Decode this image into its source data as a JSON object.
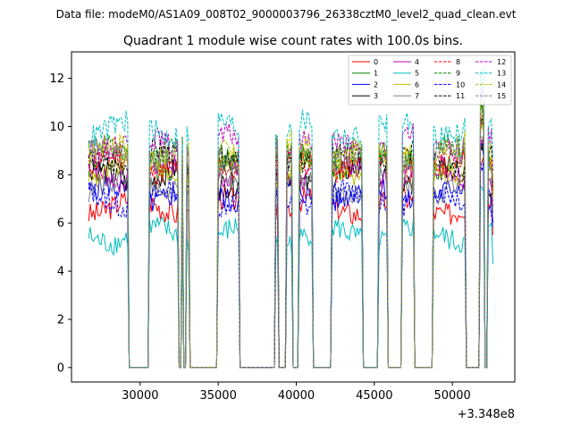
{
  "suptitle": "Data file: modeM0/AS1A09_008T02_9000003796_26338cztM0_level2_quad_clean.evt",
  "chart_data": {
    "type": "line",
    "title": "Quadrant 1 module wise count rates with 100.0s bins.",
    "xlabel": "",
    "ylabel": "",
    "x_offset_label": "+3.348e8",
    "xlim": [
      25600,
      54000
    ],
    "ylim": [
      -0.6,
      13.1
    ],
    "xticks": [
      30000,
      35000,
      40000,
      45000,
      50000
    ],
    "xtick_labels": [
      "30000",
      "35000",
      "40000",
      "45000",
      "50000"
    ],
    "yticks": [
      0,
      2,
      4,
      6,
      8,
      10,
      12
    ],
    "ytick_labels": [
      "0",
      "2",
      "4",
      "6",
      "8",
      "10",
      "12"
    ],
    "grid": false,
    "legend_position": "top-right",
    "bin_size": 100,
    "gaps": [
      [
        29250,
        30550
      ],
      [
        32500,
        32650
      ],
      [
        32800,
        32950
      ],
      [
        33200,
        34900
      ],
      [
        36400,
        38650
      ],
      [
        38900,
        39300
      ],
      [
        39800,
        40150
      ],
      [
        41100,
        42200
      ],
      [
        44300,
        45200
      ],
      [
        45850,
        46750
      ],
      [
        47600,
        48700
      ],
      [
        50900,
        51750
      ],
      [
        52050,
        52250
      ]
    ],
    "series": [
      {
        "name": "0",
        "level": 6.7,
        "color": "#ff0000",
        "dash": "solid"
      },
      {
        "name": "1",
        "level": 8.6,
        "color": "#008000",
        "dash": "solid"
      },
      {
        "name": "2",
        "level": 7.2,
        "color": "#0000ff",
        "dash": "solid"
      },
      {
        "name": "3",
        "level": 7.9,
        "color": "#000000",
        "dash": "solid"
      },
      {
        "name": "4",
        "level": 8.1,
        "color": "#bf00bf",
        "dash": "solid"
      },
      {
        "name": "5",
        "level": 5.5,
        "color": "#00bfbf",
        "dash": "solid"
      },
      {
        "name": "6",
        "level": 8.3,
        "color": "#bfbf00",
        "dash": "solid"
      },
      {
        "name": "7",
        "level": 7.6,
        "color": "#808080",
        "dash": "solid"
      },
      {
        "name": "8",
        "level": 8.4,
        "color": "#ff0000",
        "dash": "dashed"
      },
      {
        "name": "9",
        "level": 8.9,
        "color": "#008000",
        "dash": "dashed"
      },
      {
        "name": "10",
        "level": 7.0,
        "color": "#0000ff",
        "dash": "dashed"
      },
      {
        "name": "11",
        "level": 8.7,
        "color": "#000000",
        "dash": "dashed"
      },
      {
        "name": "12",
        "level": 9.3,
        "color": "#bf00bf",
        "dash": "dashed"
      },
      {
        "name": "13",
        "level": 9.9,
        "color": "#00bfbf",
        "dash": "dashed"
      },
      {
        "name": "14",
        "level": 9.0,
        "color": "#bfbf00",
        "dash": "dashed"
      },
      {
        "name": "15",
        "level": 8.8,
        "color": "#808080",
        "dash": "dashed"
      }
    ]
  }
}
